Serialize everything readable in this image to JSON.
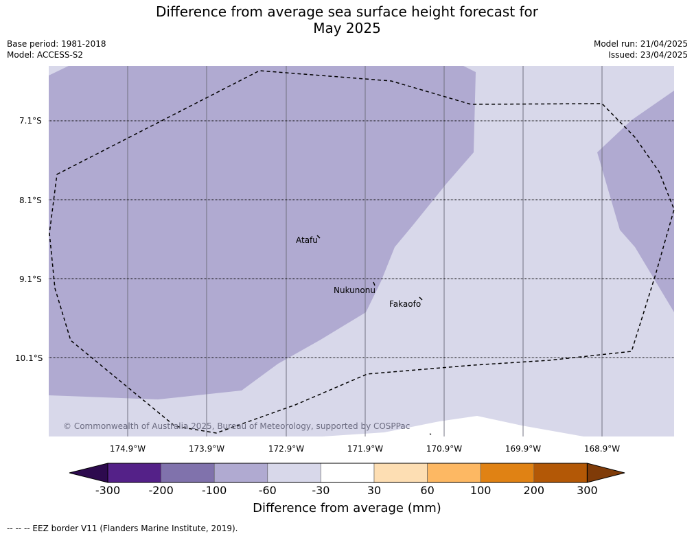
{
  "title": {
    "line1": "Difference from average sea surface height forecast for",
    "line2": "May 2025"
  },
  "meta": {
    "base_period": "Base period: 1981-2018",
    "model": "Model: ACCESS-S2",
    "model_run": "Model run: 21/04/2025",
    "issued": "Issued: 23/04/2025"
  },
  "map": {
    "latitudes": [
      "7.1°S",
      "8.1°S",
      "9.1°S",
      "10.1°S"
    ],
    "longitudes": [
      "174.9°W",
      "173.9°W",
      "172.9°W",
      "171.9°W",
      "170.9°W",
      "169.9°W",
      "168.9°W"
    ],
    "places": [
      "Atafu",
      "Nukunonu",
      "Fakaofo"
    ],
    "copyright": "© Commonwealth of Australia 2025, Bureau of Meteorology, supported by COSPPac",
    "colors": {
      "band_neg100_neg60": "#b0aad1",
      "band_neg60_neg30": "#d8d8ea",
      "band_neg30_30": "#ffffff"
    }
  },
  "colorbar": {
    "ticks": [
      "-300",
      "-200",
      "-100",
      "-60",
      "-30",
      "30",
      "60",
      "100",
      "200",
      "300"
    ],
    "colors": [
      "#2d0a4e",
      "#542188",
      "#8072ac",
      "#b0aad1",
      "#d8d8ea",
      "#ffffff",
      "#fddeb3",
      "#fdb863",
      "#e08214",
      "#b35806",
      "#7f3b08"
    ],
    "label": "Difference from average (mm)"
  },
  "footer": {
    "legend": "-- -- -- EEZ border V11 (Flanders Marine Institute, 2019)."
  }
}
